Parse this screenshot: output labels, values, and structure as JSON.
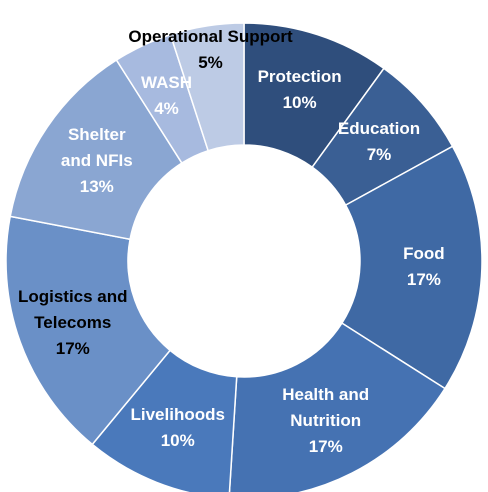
{
  "chart_data": {
    "type": "donut",
    "categories": [
      "Protection",
      "Education",
      "Food",
      "Health and Nutrition",
      "Livelihoods",
      "Logistics and Telecoms",
      "Shelter and NFIs",
      "WASH",
      "Operational Support"
    ],
    "values": [
      10,
      7,
      17,
      17,
      10,
      17,
      13,
      4,
      5
    ],
    "value_labels": [
      "10%",
      "7%",
      "17%",
      "17%",
      "10%",
      "17%",
      "13%",
      "4%",
      "5%"
    ],
    "colors": [
      "#2f4e7c",
      "#3a5f94",
      "#3f69a4",
      "#4572b2",
      "#4a79bb",
      "#6a90c7",
      "#8aa6d2",
      "#a7badf",
      "#bdcbe5"
    ],
    "label_colors": [
      "#ffffff",
      "#ffffff",
      "#ffffff",
      "#ffffff",
      "#ffffff",
      "#000000",
      "#ffffff",
      "#ffffff",
      "#000000"
    ]
  }
}
